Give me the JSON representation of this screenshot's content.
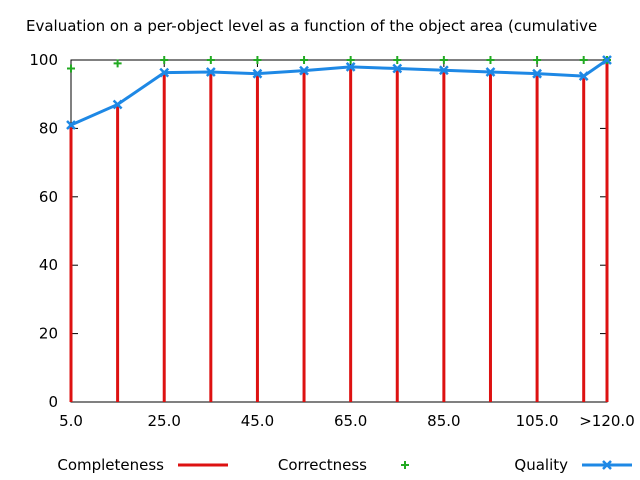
{
  "chart_data": {
    "type": "bar",
    "title": "Evaluation on a per-object level as a function of the object area (cumulative",
    "x": [
      5,
      15,
      25,
      35,
      45,
      55,
      65,
      75,
      85,
      95,
      105,
      115,
      120
    ],
    "xlim": [
      5,
      120
    ],
    "ylim": [
      0,
      100
    ],
    "xticks": [
      {
        "x": 5,
        "label": "5.0"
      },
      {
        "x": 25,
        "label": "25.0"
      },
      {
        "x": 45,
        "label": "45.0"
      },
      {
        "x": 65,
        "label": "65.0"
      },
      {
        "x": 85,
        "label": "85.0"
      },
      {
        "x": 105,
        "label": "105.0"
      },
      {
        "x": 120,
        "label": ">120.0"
      }
    ],
    "yticks": [
      0,
      20,
      40,
      60,
      80,
      100
    ],
    "grid": false,
    "legend_position": "bottom",
    "series": [
      {
        "name": "Completeness",
        "type": "impulse",
        "color": "#dd1111",
        "values": [
          81,
          87,
          96,
          96.5,
          96,
          97,
          98,
          97.5,
          97,
          96.5,
          96,
          95.5,
          100
        ]
      },
      {
        "name": "Correctness",
        "type": "points",
        "color": "#22aa22",
        "values": [
          97.5,
          99,
          100,
          100,
          100,
          100,
          100,
          100,
          100,
          100,
          100,
          100,
          100
        ]
      },
      {
        "name": "Quality",
        "type": "linespoints",
        "color": "#1e88e5",
        "values": [
          81,
          87,
          96.3,
          96.5,
          96,
          96.9,
          98,
          97.5,
          97,
          96.5,
          96,
          95.3,
          100
        ]
      }
    ]
  }
}
